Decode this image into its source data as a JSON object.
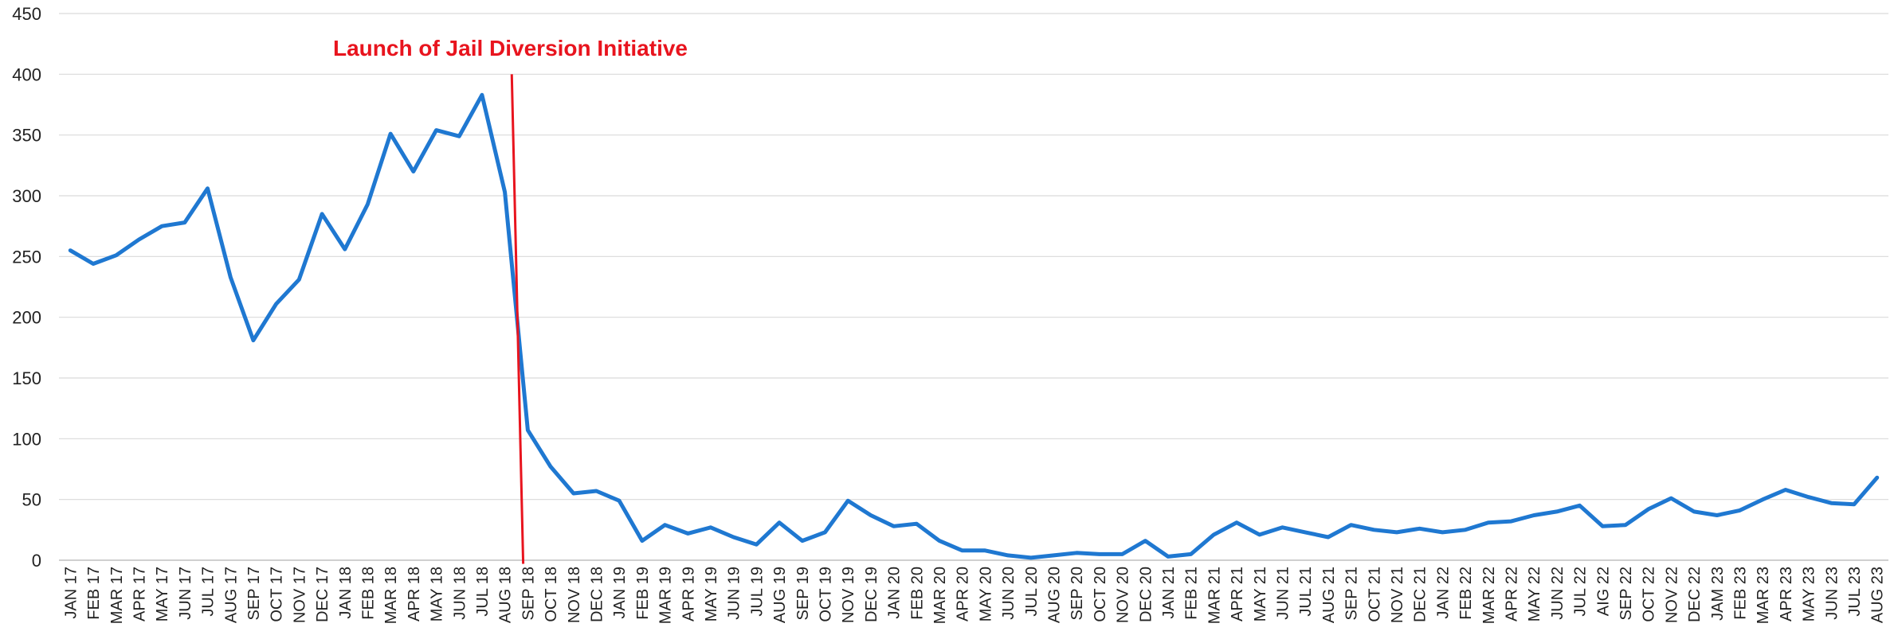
{
  "chart_data": {
    "type": "line",
    "title": "",
    "xlabel": "",
    "ylabel": "",
    "ylim": [
      0,
      450
    ],
    "yticks": [
      0,
      50,
      100,
      150,
      200,
      250,
      300,
      350,
      400,
      450
    ],
    "grid": true,
    "legend": "none",
    "categories": [
      "JAN 17",
      "FEB 17",
      "MAR 17",
      "APR 17",
      "MAY 17",
      "JUN 17",
      "JUL 17",
      "AUG 17",
      "SEP 17",
      "OCT 17",
      "NOV 17",
      "DEC 17",
      "JAN 18",
      "FEB 18",
      "MAR 18",
      "APR 18",
      "MAY 18",
      "JUN 18",
      "JUL 18",
      "AUG 18",
      "SEP 18",
      "OCT 18",
      "NOV 18",
      "DEC 18",
      "JAN 19",
      "FEB 19",
      "MAR 19",
      "APR 19",
      "MAY 19",
      "JUN 19",
      "JUL 19",
      "AUG 19",
      "SEP 19",
      "OCT 19",
      "NOV 19",
      "DEC 19",
      "JAN 20",
      "FEB 20",
      "MAR 20",
      "APR 20",
      "MAY 20",
      "JUN 20",
      "JUL 20",
      "AUG 20",
      "SEP 20",
      "OCT 20",
      "NOV 20",
      "DEC 20",
      "JAN 21",
      "FEB 21",
      "MAR 21",
      "APR 21",
      "MAY 21",
      "JUN 21",
      "JUL 21",
      "AUG 21",
      "SEP 21",
      "OCT 21",
      "NOV 21",
      "DEC 21",
      "JAN 22",
      "FEB 22",
      "MAR 22",
      "APR 22",
      "MAY 22",
      "JUN 22",
      "JUL 22",
      "AIG 22",
      "SEP 22",
      "OCT 22",
      "NOV 22",
      "DEC 22",
      "JAM 23",
      "FEB 23",
      "MAR 23",
      "APR 23",
      "MAY 23",
      "JUN 23",
      "JUL 23",
      "AUG 23"
    ],
    "series": [
      {
        "name": "",
        "color": "#1f78d1",
        "values": [
          255,
          244,
          251,
          264,
          275,
          278,
          306,
          233,
          181,
          211,
          231,
          285,
          256,
          293,
          351,
          320,
          354,
          349,
          383,
          303,
          107,
          77,
          55,
          57,
          49,
          16,
          29,
          22,
          27,
          19,
          13,
          31,
          16,
          23,
          49,
          37,
          28,
          30,
          16,
          8,
          8,
          4,
          2,
          4,
          6,
          5,
          5,
          16,
          3,
          5,
          21,
          31,
          21,
          27,
          23,
          19,
          29,
          25,
          23,
          26,
          23,
          25,
          31,
          32,
          37,
          40,
          45,
          28,
          29,
          42,
          51,
          40,
          37,
          41,
          50,
          58,
          52,
          47,
          46,
          68
        ]
      }
    ],
    "annotations": [
      {
        "text": "Launch of Jail Diversion Initiative",
        "color": "#e8141e",
        "line_from": {
          "x": 19.3,
          "y": 400
        },
        "line_to": {
          "x": 19.8,
          "y": -3
        }
      }
    ],
    "colors": {
      "line": "#1f78d1",
      "annotation": "#e8141e",
      "grid": "#d9d9d9",
      "axis": "#bfbfbf"
    }
  }
}
